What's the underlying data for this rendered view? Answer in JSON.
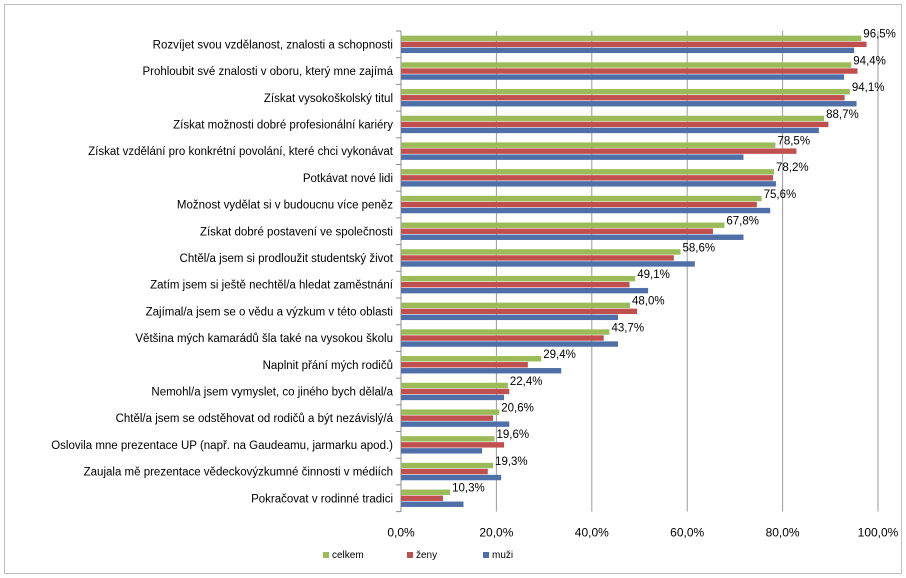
{
  "chart_data": {
    "type": "bar",
    "orientation": "horizontal",
    "categories": [
      "Rozvíjet svou vzdělanost, znalosti a schopnosti",
      "Prohloubit své znalosti v oboru, který mne zajímá",
      "Získat vysokoškolský titul",
      "Získat možnosti dobré profesionální kariéry",
      "Získat vzdělání pro konkrétní povolání, které chci vykonávat",
      "Potkávat nové lidi",
      "Možnost vydělat si v budoucnu více peněz",
      "Získat dobré postavení ve společnosti",
      "Chtěl/a jsem si prodloužit studentský život",
      "Zatím jsem si ještě nechtěl/a hledat zaměstnání",
      "Zajímal/a jsem se o vědu a výzkum v této oblasti",
      "Většina mých kamarádů šla také na vysokou školu",
      "Naplnit přání mých rodičů",
      "Nemohl/a jsem vymyslet, co jiného bych dělal/a",
      "Chtěl/a jsem se odstěhovat od rodičů a být nezávislý/á",
      "Oslovila mne prezentace UP (např. na Gaudeamu, jarmarku apod.)",
      "Zaujala mě prezentace vědeckovýzkumné činnosti v médiích",
      "Pokračovat v rodinné tradici"
    ],
    "series": [
      {
        "name": "celkem",
        "color": "#9BBB59",
        "values": [
          96.5,
          94.4,
          94.1,
          88.7,
          78.5,
          78.2,
          75.6,
          67.8,
          58.6,
          49.1,
          48.0,
          43.7,
          29.4,
          22.4,
          20.6,
          19.6,
          19.3,
          10.3
        ]
      },
      {
        "name": "ženy",
        "color": "#C0504D",
        "values": [
          97.6,
          95.7,
          93.0,
          89.6,
          82.9,
          78.0,
          74.6,
          65.4,
          57.2,
          47.9,
          49.5,
          42.5,
          26.6,
          22.7,
          19.3,
          21.6,
          18.2,
          8.8
        ]
      },
      {
        "name": "muži",
        "color": "#4F6FA8",
        "values": [
          95.0,
          92.9,
          95.5,
          87.6,
          71.8,
          78.6,
          77.4,
          71.8,
          61.6,
          51.8,
          45.5,
          45.5,
          33.6,
          21.6,
          22.7,
          17.0,
          21.0,
          13.1
        ]
      }
    ],
    "data_labels": [
      "96,5%",
      "94,4%",
      "94,1%",
      "88,7%",
      "78,5%",
      "78,2%",
      "75,6%",
      "67,8%",
      "58,6%",
      "49,1%",
      "48,0%",
      "43,7%",
      "29,4%",
      "22,4%",
      "20,6%",
      "19,6%",
      "19,3%",
      "10,3%"
    ],
    "x_ticks": [
      0,
      20,
      40,
      60,
      80,
      100
    ],
    "x_tick_labels": [
      "0,0%",
      "20,0%",
      "40,0%",
      "60,0%",
      "80,0%",
      "100,0%"
    ],
    "xlim": [
      0,
      100
    ],
    "grid": true,
    "legend_position": "bottom",
    "title": "",
    "xlabel": "",
    "ylabel": ""
  }
}
